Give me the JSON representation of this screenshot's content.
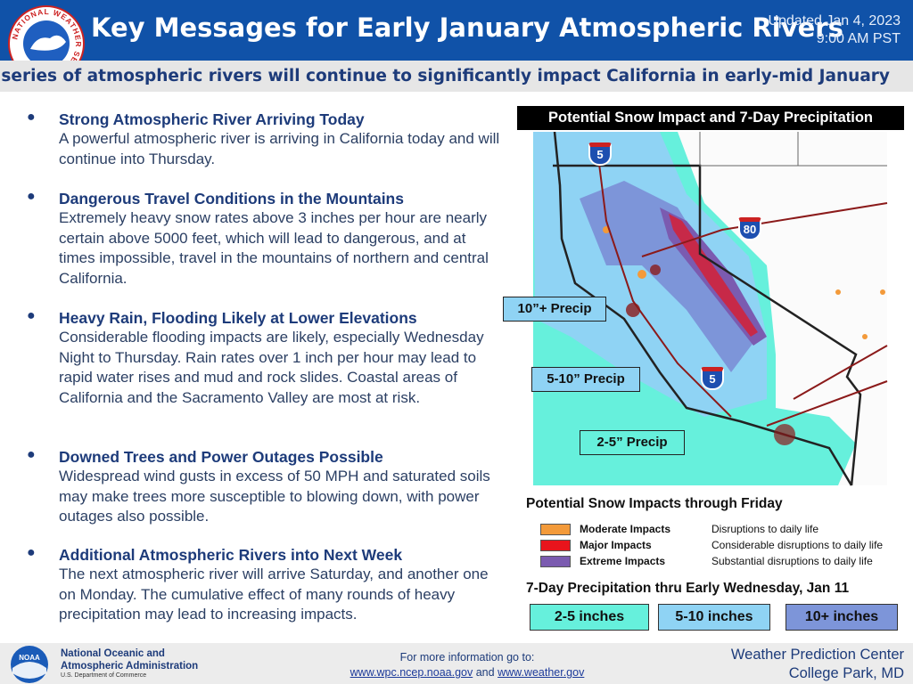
{
  "header": {
    "logo_text": "NATIONAL WEATHER SERVICE",
    "title": "Key Messages for Early January Atmospheric Rivers",
    "updated": [
      "Updated Jan 4, 2023",
      "9:00 AM PST"
    ],
    "subtitle": "A series of atmospheric rivers will continue to significantly impact California in early-mid January"
  },
  "messages": [
    {
      "heading": "Strong Atmospheric River Arriving Today",
      "body": "A powerful atmospheric river is arriving in California today and will continue into Thursday."
    },
    {
      "heading": "Dangerous Travel Conditions in the Mountains",
      "body": "Extremely heavy snow rates above 3 inches per hour are nearly certain above 5000 feet, which will lead to dangerous, and at times impossible, travel in the mountains of northern and central California."
    },
    {
      "heading": "Heavy Rain, Flooding Likely at Lower Elevations",
      "body": "Considerable flooding impacts are likely, especially Wednesday Night to Thursday. Rain rates over 1 inch per hour may lead to rapid water rises and mud and rock slides. Coastal areas of California and the Sacramento Valley are most at risk."
    },
    {
      "heading": "Downed Trees and Power Outages Possible",
      "body": "Widespread wind gusts in excess of 50 MPH and saturated soils may make trees more susceptible to blowing down, with power outages also possible."
    },
    {
      "heading": "Additional Atmospheric Rivers into Next Week",
      "body": "The next atmospheric river will arrive Saturday, and another one on Monday. The cumulative effect of many rounds of heavy precipitation may lead to increasing impacts."
    }
  ],
  "map": {
    "title": "Potential Snow Impact and 7-Day Precipitation",
    "labels": [
      "10”+ Precip",
      "5-10” Precip",
      "2-5” Precip"
    ],
    "shields": [
      "5",
      "80",
      "5"
    ]
  },
  "snow_legend": {
    "title": "Potential Snow Impacts through Friday",
    "items": [
      {
        "label": "Moderate Impacts",
        "description": "Disruptions to daily life",
        "color": "#f39a3a"
      },
      {
        "label": "Major Impacts",
        "description": "Considerable disruptions to daily life",
        "color": "#e8141c"
      },
      {
        "label": "Extreme Impacts",
        "description": "Substantial disruptions to daily life",
        "color": "#7b5bb0"
      }
    ]
  },
  "precip_legend": {
    "title": "7-Day Precipitation thru Early Wednesday, Jan 11",
    "items": [
      {
        "label": "2-5 inches",
        "color": "#66f0dc"
      },
      {
        "label": "5-10 inches",
        "color": "#8fd3f4"
      },
      {
        "label": "10+ inches",
        "color": "#7d95d9"
      }
    ]
  },
  "footer": {
    "noaa": {
      "logo": "NOAA",
      "name": [
        "National Oceanic and",
        "Atmospheric Administration"
      ],
      "department": "U.S. Department of Commerce"
    },
    "info": {
      "lead": "For more information go to:",
      "link1": "www.wpc.ncep.noaa.gov",
      "joiner": "and",
      "link2": "www.weather.gov"
    },
    "office": [
      "Weather Prediction Center",
      "College Park, MD"
    ]
  }
}
